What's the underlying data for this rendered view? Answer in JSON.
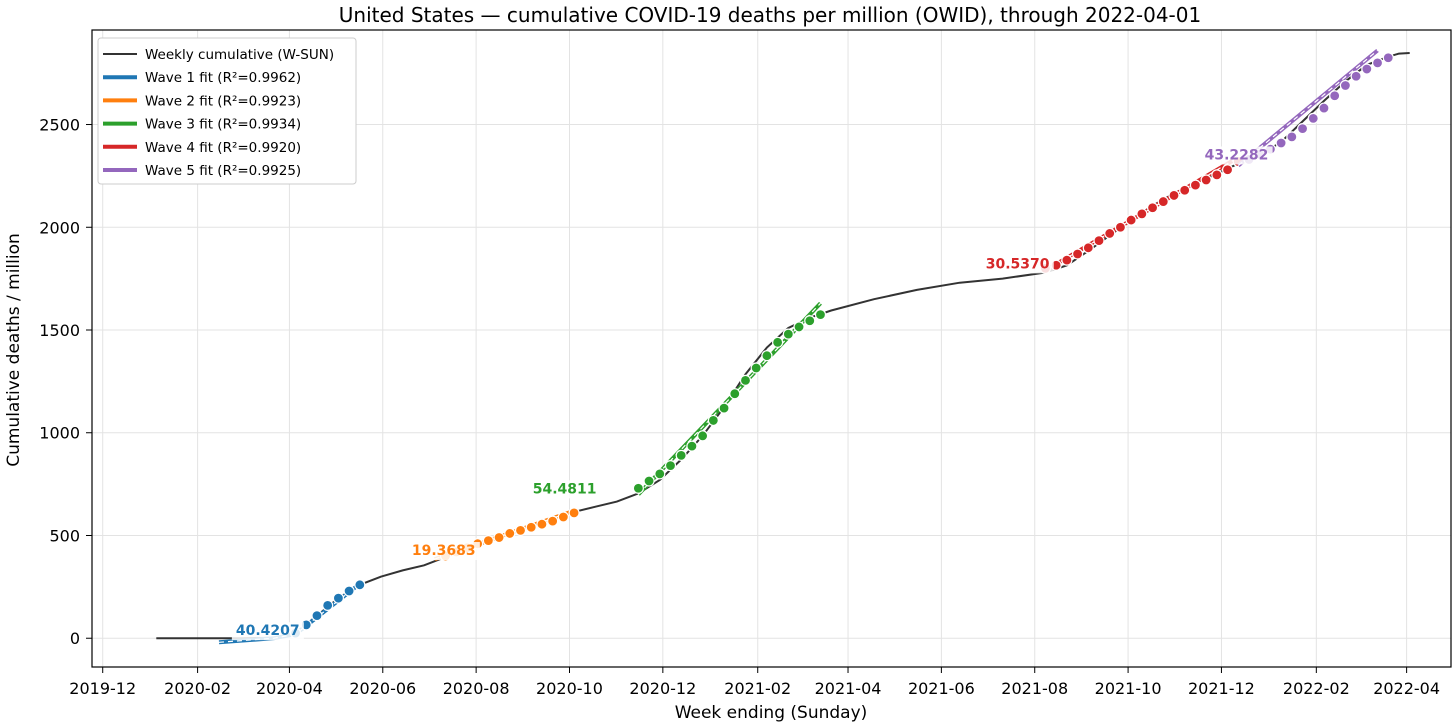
{
  "chart_data": {
    "type": "line",
    "title": "United States — cumulative COVID-19 deaths per million (OWID), through 2022-04-01",
    "xlabel": "Week ending (Sunday)",
    "ylabel": "Cumulative deaths / million",
    "xlim": [
      "2019-11-24",
      "2022-04-30"
    ],
    "ylim": [
      -140,
      2960
    ],
    "grid": true,
    "legend_position": "top-left",
    "x_ticks": [
      "2019-12",
      "2020-02",
      "2020-04",
      "2020-06",
      "2020-08",
      "2020-10",
      "2020-12",
      "2021-02",
      "2021-04",
      "2021-06",
      "2021-08",
      "2021-10",
      "2021-12",
      "2022-02",
      "2022-04"
    ],
    "y_ticks": [
      0,
      500,
      1000,
      1500,
      2000,
      2500
    ],
    "base_color": "#333333",
    "series": [
      {
        "name": "Weekly cumulative (W-SUN)",
        "color": "#333333",
        "points": [
          [
            "2020-01-05",
            0
          ],
          [
            "2020-02-02",
            0
          ],
          [
            "2020-03-01",
            0
          ],
          [
            "2020-03-22",
            2
          ],
          [
            "2020-04-05",
            25
          ],
          [
            "2020-04-19",
            110
          ],
          [
            "2020-05-03",
            195
          ],
          [
            "2020-05-17",
            260
          ],
          [
            "2020-05-31",
            300
          ],
          [
            "2020-06-14",
            330
          ],
          [
            "2020-06-28",
            355
          ],
          [
            "2020-07-12",
            395
          ],
          [
            "2020-08-09",
            470
          ],
          [
            "2020-09-06",
            545
          ],
          [
            "2020-10-04",
            615
          ],
          [
            "2020-10-18",
            640
          ],
          [
            "2020-11-01",
            665
          ],
          [
            "2020-11-15",
            705
          ],
          [
            "2020-11-29",
            770
          ],
          [
            "2020-12-13",
            870
          ],
          [
            "2020-12-27",
            985
          ],
          [
            "2021-01-10",
            1125
          ],
          [
            "2021-01-24",
            1285
          ],
          [
            "2021-02-07",
            1415
          ],
          [
            "2021-02-21",
            1510
          ],
          [
            "2021-03-07",
            1560
          ],
          [
            "2021-03-21",
            1595
          ],
          [
            "2021-04-18",
            1650
          ],
          [
            "2021-05-16",
            1695
          ],
          [
            "2021-06-13",
            1730
          ],
          [
            "2021-07-11",
            1750
          ],
          [
            "2021-08-08",
            1780
          ],
          [
            "2021-08-22",
            1815
          ],
          [
            "2021-09-05",
            1885
          ],
          [
            "2021-09-19",
            1960
          ],
          [
            "2021-10-03",
            2035
          ],
          [
            "2021-10-17",
            2105
          ],
          [
            "2021-10-31",
            2165
          ],
          [
            "2021-11-14",
            2215
          ],
          [
            "2021-11-28",
            2260
          ],
          [
            "2021-12-12",
            2310
          ],
          [
            "2021-12-26",
            2350
          ],
          [
            "2022-01-09",
            2415
          ],
          [
            "2022-01-23",
            2515
          ],
          [
            "2022-02-06",
            2615
          ],
          [
            "2022-02-20",
            2710
          ],
          [
            "2022-03-06",
            2790
          ],
          [
            "2022-03-20",
            2830
          ],
          [
            "2022-03-27",
            2845
          ],
          [
            "2022-04-03",
            2848
          ]
        ]
      },
      {
        "name": "Wave 1 fit",
        "legend_label": "Wave 1 fit  (R²=0.9962)",
        "color": "#1f77b4",
        "slope_label": "40.4207",
        "label_anchor": [
          "2020-02-26",
          15
        ],
        "fit": [
          [
            "2020-02-15",
            -20
          ],
          [
            "2020-03-22",
            0
          ],
          [
            "2020-04-05",
            20
          ],
          [
            "2020-05-17",
            265
          ]
        ],
        "markers": [
          [
            "2020-04-05",
            25
          ],
          [
            "2020-04-12",
            65
          ],
          [
            "2020-04-19",
            110
          ],
          [
            "2020-04-26",
            160
          ],
          [
            "2020-05-03",
            195
          ],
          [
            "2020-05-10",
            230
          ],
          [
            "2020-05-17",
            260
          ]
        ]
      },
      {
        "name": "Wave 2 fit",
        "legend_label": "Wave 2 fit  (R²=0.9923)",
        "color": "#ff7f0e",
        "slope_label": "19.3683",
        "label_anchor": [
          "2020-06-20",
          405
        ],
        "fit": [
          [
            "2020-07-05",
            385
          ],
          [
            "2020-10-04",
            620
          ]
        ],
        "markers": [
          [
            "2020-07-12",
            400
          ],
          [
            "2020-07-19",
            420
          ],
          [
            "2020-07-26",
            440
          ],
          [
            "2020-08-02",
            460
          ],
          [
            "2020-08-09",
            475
          ],
          [
            "2020-08-16",
            490
          ],
          [
            "2020-08-23",
            510
          ],
          [
            "2020-08-30",
            525
          ],
          [
            "2020-09-06",
            540
          ],
          [
            "2020-09-13",
            555
          ],
          [
            "2020-09-20",
            570
          ],
          [
            "2020-09-27",
            590
          ],
          [
            "2020-10-04",
            610
          ]
        ]
      },
      {
        "name": "Wave 3 fit",
        "legend_label": "Wave 3 fit  (R²=0.9934)",
        "color": "#2ca02c",
        "slope_label": "54.4811",
        "label_anchor": [
          "2020-09-07",
          705
        ],
        "fit": [
          [
            "2020-11-15",
            700
          ],
          [
            "2021-03-14",
            1630
          ]
        ],
        "markers": [
          [
            "2020-11-15",
            730
          ],
          [
            "2020-11-22",
            765
          ],
          [
            "2020-11-29",
            800
          ],
          [
            "2020-12-06",
            840
          ],
          [
            "2020-12-13",
            890
          ],
          [
            "2020-12-20",
            935
          ],
          [
            "2020-12-27",
            985
          ],
          [
            "2021-01-03",
            1060
          ],
          [
            "2021-01-10",
            1120
          ],
          [
            "2021-01-17",
            1190
          ],
          [
            "2021-01-24",
            1255
          ],
          [
            "2021-01-31",
            1315
          ],
          [
            "2021-02-07",
            1375
          ],
          [
            "2021-02-14",
            1440
          ],
          [
            "2021-02-21",
            1480
          ],
          [
            "2021-02-28",
            1515
          ],
          [
            "2021-03-07",
            1545
          ],
          [
            "2021-03-14",
            1575
          ]
        ]
      },
      {
        "name": "Wave 4 fit",
        "legend_label": "Wave 4 fit  (R²=0.9920)",
        "color": "#d62728",
        "slope_label": "30.5370",
        "label_anchor": [
          "2021-06-30",
          1800
        ],
        "fit": [
          [
            "2021-08-08",
            1790
          ],
          [
            "2021-12-12",
            2340
          ]
        ],
        "markers": [
          [
            "2021-08-08",
            1800
          ],
          [
            "2021-08-15",
            1815
          ],
          [
            "2021-08-22",
            1840
          ],
          [
            "2021-08-29",
            1870
          ],
          [
            "2021-09-05",
            1900
          ],
          [
            "2021-09-12",
            1935
          ],
          [
            "2021-09-19",
            1970
          ],
          [
            "2021-09-26",
            2000
          ],
          [
            "2021-10-03",
            2035
          ],
          [
            "2021-10-10",
            2065
          ],
          [
            "2021-10-17",
            2095
          ],
          [
            "2021-10-24",
            2125
          ],
          [
            "2021-10-31",
            2155
          ],
          [
            "2021-11-07",
            2180
          ],
          [
            "2021-11-14",
            2205
          ],
          [
            "2021-11-21",
            2230
          ],
          [
            "2021-11-28",
            2255
          ],
          [
            "2021-12-05",
            2280
          ],
          [
            "2021-12-12",
            2320
          ]
        ]
      },
      {
        "name": "Wave 5 fit",
        "legend_label": "Wave 5 fit  (R²=0.9925)",
        "color": "#9467bd",
        "slope_label": "43.2282",
        "label_anchor": [
          "2021-11-20",
          2330
        ],
        "fit": [
          [
            "2021-12-12",
            2300
          ],
          [
            "2022-03-13",
            2860
          ]
        ],
        "markers": [
          [
            "2021-12-19",
            2330
          ],
          [
            "2021-12-26",
            2355
          ],
          [
            "2022-01-02",
            2380
          ],
          [
            "2022-01-09",
            2410
          ],
          [
            "2022-01-16",
            2440
          ],
          [
            "2022-01-23",
            2480
          ],
          [
            "2022-01-30",
            2530
          ],
          [
            "2022-02-06",
            2580
          ],
          [
            "2022-02-13",
            2640
          ],
          [
            "2022-02-20",
            2690
          ],
          [
            "2022-02-27",
            2735
          ],
          [
            "2022-03-06",
            2770
          ],
          [
            "2022-03-13",
            2800
          ],
          [
            "2022-03-20",
            2825
          ]
        ]
      }
    ]
  }
}
